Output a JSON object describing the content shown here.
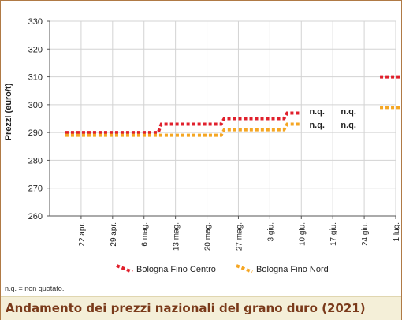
{
  "title": "Andamento dei prezzi nazionali del grano duro (2021)",
  "note": "n.q. = non quotato.",
  "colors": {
    "centro": "#e0202c",
    "nord": "#f5a623",
    "title": "#7a3a1a",
    "frame": "#b07a45"
  },
  "chart_data": {
    "type": "line",
    "ylabel": "Prezzi (euro/t)",
    "xlabel": "",
    "ylim": [
      260,
      330
    ],
    "yticks": [
      260,
      270,
      280,
      290,
      300,
      310,
      320,
      330
    ],
    "grid": true,
    "legend_position": "bottom",
    "categories": [
      "22 apr.",
      "29 apr.",
      "6 mag.",
      "13 mag.",
      "20 mag.",
      "27 mag.",
      "3 giu.",
      "10 giu.",
      "17 giu.",
      "24 giu.",
      "1 lug."
    ],
    "series": [
      {
        "name": "Bologna Fino Centro",
        "values": [
          290,
          290,
          290,
          293,
          293,
          295,
          295,
          297,
          null,
          null,
          310
        ]
      },
      {
        "name": "Bologna Fino Nord",
        "values": [
          289,
          289,
          289,
          289,
          289,
          291,
          291,
          293,
          null,
          null,
          299
        ]
      }
    ],
    "annotations": [
      {
        "category": "17 giu.",
        "series": "Bologna Fino Centro",
        "text": "n.q."
      },
      {
        "category": "24 giu.",
        "series": "Bologna Fino Centro",
        "text": "n.q."
      },
      {
        "category": "17 giu.",
        "series": "Bologna Fino Nord",
        "text": "n.q."
      },
      {
        "category": "24 giu.",
        "series": "Bologna Fino Nord",
        "text": "n.q."
      }
    ]
  }
}
